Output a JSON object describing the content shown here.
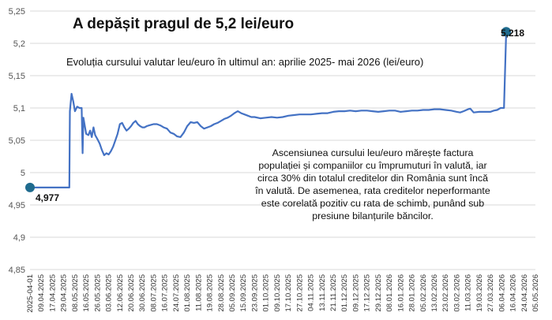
{
  "chart_data": {
    "type": "line",
    "title": "A depășit pragul de 5,2 lei/euro",
    "subtitle": "Evoluția cursului valutar leu/euro în ultimul an: aprilie 2025- mai 2026 (lei/euro)",
    "annotation": "Ascensiunea cursului leu/euro mărește factura populației și companiilor cu împrumuturi în valută, iar circa 30% din totalul creditelor din România sunt încă în valută. De asemenea, rata creditelor neperformante este corelată pozitiv cu rata de schimb, punând sub presiune bilanțurile băncilor.",
    "start_label": "4,977",
    "end_label": "5,218",
    "ylim": [
      4.85,
      5.25
    ],
    "y_ticks": [
      "4,85",
      "4,9",
      "4,95",
      "5",
      "5,05",
      "5,1",
      "5,15",
      "5,2",
      "5,25"
    ],
    "x_ticks": [
      "2025-04-01",
      "09.04.2025",
      "17.04.2025",
      "29.04.2025",
      "08.05.2025",
      "16.05.2025",
      "26.05.2025",
      "03.06.2025",
      "12.06.2025",
      "20.06.2025",
      "30.06.2025",
      "08.07.2025",
      "16.07.2025",
      "24.07.2025",
      "01.08.2025",
      "11.08.2025",
      "19.08.2025",
      "28.08.2025",
      "05.09.2025",
      "15.09.2025",
      "23.09.2025",
      "01.10.2025",
      "09.10.2025",
      "17.10.2025",
      "27.10.2025",
      "04.11.2025",
      "13.11.2025",
      "21.11.2025",
      "01.12.2025",
      "09.12.2025",
      "17.12.2025",
      "29.12.2025",
      "08.01.2026",
      "16.01.2026",
      "28.01.2026",
      "05.02.2026",
      "13.02.2026",
      "23.02.2026",
      "03.02.2026",
      "11.03.2026",
      "19.03.2026",
      "27.03.2026",
      "06.04.2026",
      "16.04.2026",
      "24.04.2026",
      "05.05.2026"
    ],
    "series": [
      {
        "color": "#4472c4",
        "points": [
          [
            0,
            4.977
          ],
          [
            3.5,
            4.977
          ],
          [
            3.55,
            5.095
          ],
          [
            3.7,
            5.122
          ],
          [
            3.85,
            5.11
          ],
          [
            4.0,
            5.095
          ],
          [
            4.2,
            5.102
          ],
          [
            4.4,
            5.1
          ],
          [
            4.6,
            5.1
          ],
          [
            4.68,
            5.03
          ],
          [
            4.75,
            5.085
          ],
          [
            4.85,
            5.075
          ],
          [
            5.0,
            5.06
          ],
          [
            5.2,
            5.058
          ],
          [
            5.35,
            5.065
          ],
          [
            5.5,
            5.055
          ],
          [
            5.65,
            5.07
          ],
          [
            5.8,
            5.058
          ],
          [
            6.0,
            5.052
          ],
          [
            6.2,
            5.045
          ],
          [
            6.4,
            5.035
          ],
          [
            6.6,
            5.027
          ],
          [
            6.8,
            5.03
          ],
          [
            7.0,
            5.028
          ],
          [
            7.2,
            5.033
          ],
          [
            7.4,
            5.04
          ],
          [
            7.6,
            5.05
          ],
          [
            7.8,
            5.06
          ],
          [
            8.0,
            5.075
          ],
          [
            8.2,
            5.077
          ],
          [
            8.4,
            5.07
          ],
          [
            8.6,
            5.065
          ],
          [
            8.8,
            5.068
          ],
          [
            9.0,
            5.072
          ],
          [
            9.2,
            5.077
          ],
          [
            9.4,
            5.08
          ],
          [
            9.6,
            5.075
          ],
          [
            9.8,
            5.072
          ],
          [
            10.0,
            5.07
          ],
          [
            10.2,
            5.07
          ],
          [
            10.4,
            5.072
          ],
          [
            10.6,
            5.073
          ],
          [
            10.8,
            5.074
          ],
          [
            11.0,
            5.075
          ],
          [
            11.3,
            5.075
          ],
          [
            11.6,
            5.073
          ],
          [
            11.9,
            5.07
          ],
          [
            12.2,
            5.068
          ],
          [
            12.5,
            5.062
          ],
          [
            12.8,
            5.06
          ],
          [
            13.1,
            5.056
          ],
          [
            13.4,
            5.055
          ],
          [
            13.7,
            5.062
          ],
          [
            14.0,
            5.072
          ],
          [
            14.3,
            5.078
          ],
          [
            14.6,
            5.077
          ],
          [
            14.9,
            5.078
          ],
          [
            15.2,
            5.072
          ],
          [
            15.5,
            5.068
          ],
          [
            15.8,
            5.07
          ],
          [
            16.1,
            5.072
          ],
          [
            16.4,
            5.075
          ],
          [
            16.7,
            5.077
          ],
          [
            17.0,
            5.08
          ],
          [
            17.3,
            5.083
          ],
          [
            17.6,
            5.085
          ],
          [
            17.9,
            5.088
          ],
          [
            18.2,
            5.092
          ],
          [
            18.5,
            5.095
          ],
          [
            18.8,
            5.092
          ],
          [
            19.1,
            5.09
          ],
          [
            19.4,
            5.088
          ],
          [
            19.7,
            5.086
          ],
          [
            20.0,
            5.086
          ],
          [
            20.5,
            5.084
          ],
          [
            21.0,
            5.085
          ],
          [
            21.5,
            5.086
          ],
          [
            22.0,
            5.085
          ],
          [
            22.5,
            5.086
          ],
          [
            23.0,
            5.088
          ],
          [
            23.5,
            5.089
          ],
          [
            24.0,
            5.09
          ],
          [
            24.5,
            5.09
          ],
          [
            25.0,
            5.09
          ],
          [
            25.5,
            5.091
          ],
          [
            26.0,
            5.092
          ],
          [
            26.5,
            5.092
          ],
          [
            27.0,
            5.094
          ],
          [
            27.5,
            5.095
          ],
          [
            28.0,
            5.095
          ],
          [
            28.5,
            5.096
          ],
          [
            29.0,
            5.095
          ],
          [
            29.5,
            5.096
          ],
          [
            30.0,
            5.096
          ],
          [
            30.5,
            5.095
          ],
          [
            31.0,
            5.094
          ],
          [
            31.5,
            5.095
          ],
          [
            32.0,
            5.096
          ],
          [
            32.5,
            5.096
          ],
          [
            33.0,
            5.094
          ],
          [
            33.5,
            5.095
          ],
          [
            34.0,
            5.096
          ],
          [
            34.5,
            5.096
          ],
          [
            35.0,
            5.097
          ],
          [
            35.5,
            5.097
          ],
          [
            36.0,
            5.098
          ],
          [
            36.5,
            5.098
          ],
          [
            37.0,
            5.097
          ],
          [
            37.5,
            5.096
          ],
          [
            38.0,
            5.094
          ],
          [
            38.3,
            5.093
          ],
          [
            38.6,
            5.095
          ],
          [
            39.0,
            5.098
          ],
          [
            39.2,
            5.099
          ],
          [
            39.5,
            5.093
          ],
          [
            40.0,
            5.094
          ],
          [
            40.5,
            5.094
          ],
          [
            41.0,
            5.094
          ],
          [
            41.3,
            5.096
          ],
          [
            41.6,
            5.097
          ],
          [
            41.9,
            5.1
          ],
          [
            42.2,
            5.1
          ],
          [
            42.4,
            5.218
          ]
        ]
      }
    ]
  }
}
